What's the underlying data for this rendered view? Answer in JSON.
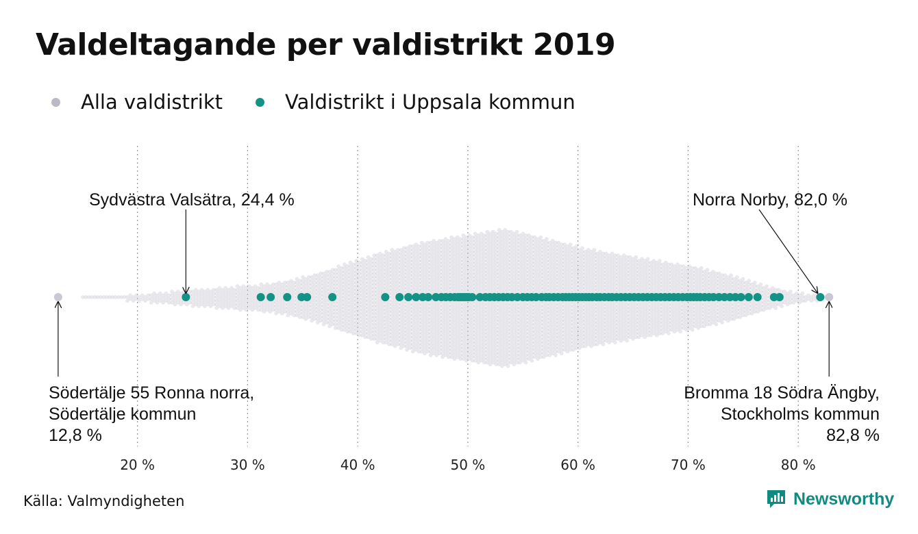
{
  "title": "Valdeltagande per valdistrikt 2019",
  "legend": [
    {
      "label": "Alla valdistrikt",
      "color": "#bab9c6"
    },
    {
      "label": "Valdistrikt i Uppsala kommun",
      "color": "#159286"
    }
  ],
  "source": "Källa: Valmyndigheten",
  "brand": "Newsworthy",
  "chart_data": {
    "type": "scatter",
    "subtype": "beeswarm",
    "xlim": [
      12,
      84
    ],
    "x_ticks": [
      20,
      30,
      40,
      50,
      60,
      70,
      80
    ],
    "x_tick_labels": [
      "20 %",
      "30 %",
      "40 %",
      "50 %",
      "60 %",
      "70 %",
      "80 %"
    ],
    "grid": "vertical-dotted",
    "colors": {
      "all": "#c9c8d3",
      "uppsala": "#159286"
    },
    "distribution_profile": {
      "x": [
        13,
        14,
        16,
        18,
        20,
        22,
        24,
        26,
        28,
        30,
        32,
        34,
        36,
        38,
        40,
        42,
        44,
        46,
        48,
        50,
        52,
        53.5,
        55,
        57,
        59,
        61,
        63,
        65,
        67,
        69,
        71,
        73,
        75,
        77,
        79,
        81,
        83
      ],
      "count": [
        1,
        0,
        1,
        1,
        2,
        3,
        4,
        5,
        6,
        7,
        8,
        10,
        13,
        17,
        21,
        25,
        28,
        31,
        33,
        35,
        37,
        38,
        36,
        33,
        30,
        27,
        25,
        23,
        21,
        19,
        17,
        14,
        11,
        7,
        4,
        2,
        1
      ]
    },
    "series": [
      {
        "name": "Valdistrikt i Uppsala kommun",
        "x": [
          24.4,
          31.2,
          32.1,
          33.6,
          34.9,
          35.4,
          37.7,
          42.5,
          43.8,
          44.6,
          45.3,
          45.9,
          46.4,
          47.1,
          47.6,
          48.0,
          48.4,
          48.8,
          49.1,
          49.3,
          49.5,
          49.7,
          49.9,
          50.1,
          50.4,
          51.1,
          51.6,
          52.0,
          52.4,
          52.8,
          53.2,
          53.6,
          54.0,
          54.5,
          55.0,
          55.4,
          55.8,
          56.2,
          56.7,
          57.1,
          57.4,
          57.8,
          58.2,
          58.6,
          58.9,
          59.2,
          59.5,
          59.8,
          60.1,
          60.4,
          60.7,
          61.0,
          61.3,
          61.7,
          62.0,
          62.4,
          62.8,
          63.1,
          63.5,
          63.9,
          64.3,
          64.7,
          65.1,
          65.5,
          65.9,
          66.3,
          66.7,
          67.1,
          67.5,
          67.9,
          68.3,
          68.7,
          69.1,
          69.5,
          69.9,
          70.2,
          70.5,
          70.8,
          71.1,
          71.5,
          71.9,
          72.3,
          72.8,
          73.3,
          73.8,
          74.3,
          74.8,
          75.5,
          76.3,
          77.8,
          78.3,
          82.0
        ]
      }
    ],
    "annotations": [
      {
        "lines": [
          "Sydvästra Valsätra, 24,4 %"
        ],
        "x": 24.4,
        "series": "uppsala",
        "position": "above"
      },
      {
        "lines": [
          "Norra Norby, 82,0 %"
        ],
        "x": 82.0,
        "series": "uppsala",
        "position": "above"
      },
      {
        "lines": [
          "Södertälje 55 Ronna norra,",
          "Södertälje kommun",
          "12,8 %"
        ],
        "x": 12.8,
        "series": "all",
        "position": "below-left"
      },
      {
        "lines": [
          "Bromma 18 Södra Ängby,",
          "Stockholms kommun",
          "82,8 %"
        ],
        "x": 82.8,
        "series": "all",
        "position": "below-right"
      }
    ]
  }
}
